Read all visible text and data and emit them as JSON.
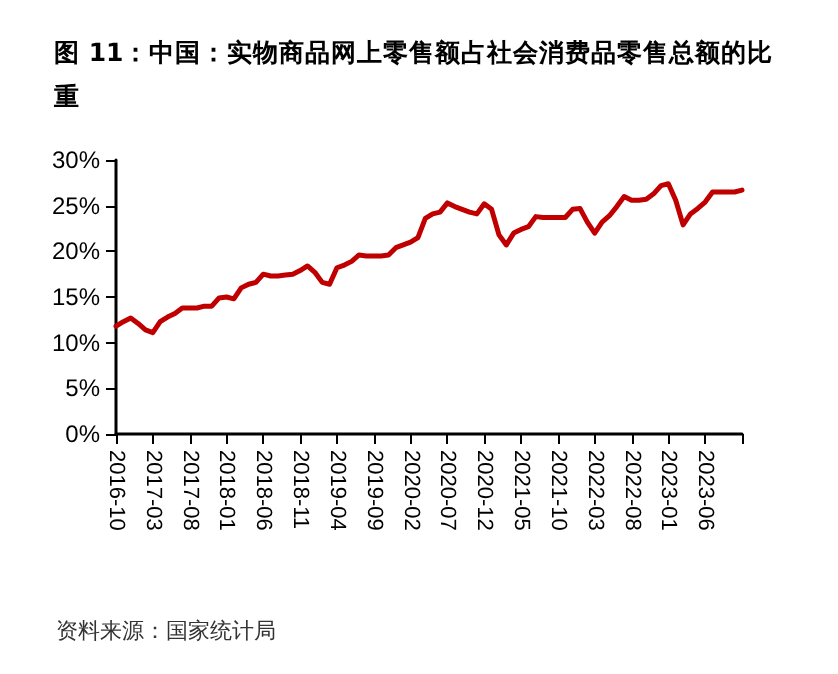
{
  "chart_data": {
    "type": "line",
    "title": "图 11：中国：实物商品网上零售额占社会消费品零售总额的比重",
    "categories": [
      "2016-10",
      null,
      null,
      null,
      null,
      "2017-03",
      null,
      null,
      null,
      null,
      "2017-08",
      null,
      null,
      null,
      null,
      "2018-01",
      null,
      null,
      null,
      null,
      "2018-06",
      null,
      null,
      null,
      null,
      "2018-11",
      null,
      null,
      null,
      null,
      "2019-04",
      null,
      null,
      null,
      null,
      "2019-09",
      null,
      null,
      null,
      null,
      "2020-02",
      null,
      null,
      null,
      null,
      "2020-07",
      null,
      null,
      null,
      null,
      "2020-12",
      null,
      null,
      null,
      null,
      "2021-05",
      null,
      null,
      null,
      null,
      "2021-10",
      null,
      null,
      null,
      null,
      "2022-03",
      null,
      null,
      null,
      null,
      "2022-08",
      null,
      null,
      null,
      null,
      "2023-01",
      null,
      null,
      null,
      null,
      "2023-06",
      null,
      null,
      null,
      null,
      null
    ],
    "series": [
      {
        "color": "#c00000",
        "values": [
          11.8,
          12.3,
          12.7,
          12.1,
          11.4,
          11.1,
          12.3,
          12.8,
          13.2,
          13.8,
          13.8,
          13.8,
          14.0,
          14.0,
          14.9,
          15.0,
          14.8,
          16.0,
          16.4,
          16.6,
          17.5,
          17.3,
          17.3,
          17.4,
          17.5,
          17.9,
          18.4,
          17.7,
          16.6,
          16.4,
          18.2,
          18.5,
          18.9,
          19.6,
          19.5,
          19.5,
          19.5,
          19.6,
          20.4,
          20.7,
          21.0,
          21.5,
          23.6,
          24.1,
          24.3,
          25.3,
          24.9,
          24.6,
          24.3,
          24.1,
          25.2,
          24.6,
          21.8,
          20.7,
          22.0,
          22.4,
          22.7,
          23.8,
          23.7,
          23.7,
          23.7,
          23.7,
          24.6,
          24.7,
          23.2,
          22.0,
          23.2,
          23.9,
          24.9,
          26.0,
          25.6,
          25.6,
          25.7,
          26.3,
          27.2,
          27.4,
          25.6,
          22.9,
          24.1,
          24.7,
          25.4,
          26.5,
          26.5,
          26.5,
          26.5,
          26.7
        ]
      }
    ],
    "ylim": [
      0,
      30
    ],
    "yticks": [
      {
        "value": 0,
        "label": "0%"
      },
      {
        "value": 5,
        "label": "5%"
      },
      {
        "value": 10,
        "label": "10%"
      },
      {
        "value": 15,
        "label": "15%"
      },
      {
        "value": 20,
        "label": "20%"
      },
      {
        "value": 25,
        "label": "25%"
      },
      {
        "value": 30,
        "label": "30%"
      }
    ],
    "grid": false,
    "marker": "none",
    "line_style": "solid",
    "annotations": [
      "资料来源：国家统计局"
    ]
  }
}
